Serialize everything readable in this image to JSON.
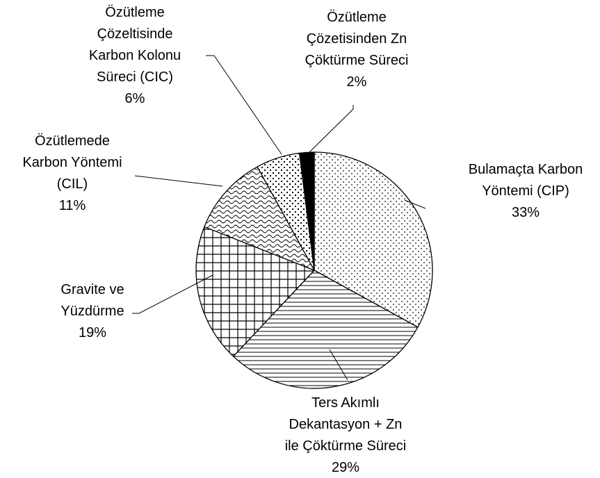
{
  "chart_data": {
    "type": "pie",
    "categories": [
      "Bulamaçta Karbon\nYöntemi (CIP)",
      "Ters Akımlı\nDekantasyon + Zn\nile Çöktürme Süreci",
      "Gravite ve\nYüzdürme",
      "Özütlemede\nKarbon Yöntemi\n(CIL)",
      "Özütleme\nÇözeltisinde\nKarbon Kolonu\nSüreci (CIC)",
      "Özütleme\nÇözetisinden Zn\nÇöktürme Süreci"
    ],
    "values": [
      33,
      29,
      19,
      11,
      6,
      2
    ],
    "value_labels": [
      "33%",
      "29%",
      "19%",
      "11%",
      "6%",
      "2%"
    ],
    "patterns": [
      "dots",
      "hlines",
      "grid",
      "waves",
      "checker",
      "solid"
    ]
  }
}
